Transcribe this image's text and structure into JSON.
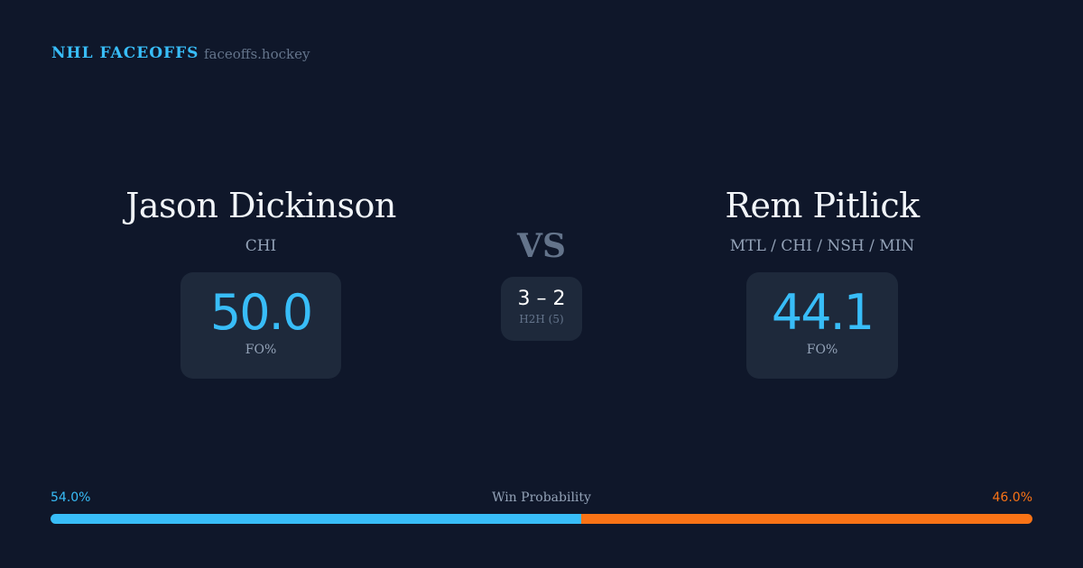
{
  "header": {
    "brand": "NHL FACEOFFS",
    "site": "faceoffs.hockey"
  },
  "player1": {
    "name": "Jason Dickinson",
    "team": "CHI",
    "fo_pct": "50.0",
    "fo_label": "FO%"
  },
  "player2": {
    "name": "Rem Pitlick",
    "team": "MTL / CHI / NSH / MIN",
    "fo_pct": "44.1",
    "fo_label": "FO%"
  },
  "versus": {
    "label": "VS",
    "h2h_score": "3 – 2",
    "h2h_label": "H2H (5)"
  },
  "win_probability": {
    "label": "Win Probability",
    "left_pct": "54.0%",
    "right_pct": "46.0%",
    "left_value": 54.0,
    "right_value": 46.0,
    "left_color": "#38bdf8",
    "right_color": "#f97316"
  }
}
